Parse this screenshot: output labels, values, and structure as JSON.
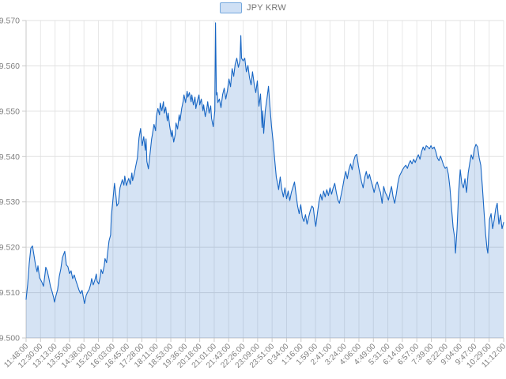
{
  "legend": {
    "items": [
      {
        "label": "JPY KRW"
      }
    ]
  },
  "colors": {
    "line": "#1766c4",
    "fill": "rgba(23,102,196,0.18)",
    "grid_h": "#e0e0e0",
    "grid_v": "#e8e8e8",
    "axis": "#c9c9c9",
    "tick_label": "#808080",
    "legend_fill": "#cfe0f5",
    "legend_border": "#74a7dd",
    "legend_text": "#757575",
    "background": "#ffffff"
  },
  "chart_data": {
    "type": "area",
    "series_name": "JPY KRW",
    "title": "",
    "xlabel": "",
    "ylabel": "",
    "grid": true,
    "legend_position": "top-center",
    "ylim": [
      9.5,
      9.57
    ],
    "y_step": 0.01,
    "y_tick_labels": [
      "9.570",
      "9.560",
      "9.550",
      "9.540",
      "9.530",
      "9.520",
      "9.510",
      "9.500"
    ],
    "x_tick_labels": [
      "11:48:00",
      "12:30:00",
      "13:13:00",
      "13:55:00",
      "14:38:00",
      "15:20:00",
      "16:03:00",
      "16:45:00",
      "17:28:00",
      "18:11:00",
      "18:53:00",
      "19:36:00",
      "20:18:00",
      "21:01:00",
      "21:43:00",
      "22:26:00",
      "23:09:00",
      "23:51:00",
      "0:34:00",
      "1:16:00",
      "1:59:00",
      "2:41:00",
      "3:24:00",
      "4:06:00",
      "4:49:00",
      "5:31:00",
      "6:14:00",
      "6:57:00",
      "7:39:00",
      "8:22:00",
      "9:04:00",
      "9:47:00",
      "10:29:00",
      "11:12:00"
    ],
    "x_unit": "label_index",
    "points": [
      [
        0.0,
        9.5085
      ],
      [
        0.11,
        9.5118
      ],
      [
        0.22,
        9.5165
      ],
      [
        0.33,
        9.5198
      ],
      [
        0.44,
        9.5203
      ],
      [
        0.55,
        9.5181
      ],
      [
        0.65,
        9.5161
      ],
      [
        0.76,
        9.5146
      ],
      [
        0.82,
        9.5159
      ],
      [
        0.93,
        9.5133
      ],
      [
        1.09,
        9.5123
      ],
      [
        1.2,
        9.5114
      ],
      [
        1.31,
        9.5142
      ],
      [
        1.36,
        9.5156
      ],
      [
        1.47,
        9.5147
      ],
      [
        1.58,
        9.5131
      ],
      [
        1.69,
        9.5113
      ],
      [
        1.8,
        9.5102
      ],
      [
        1.91,
        9.5088
      ],
      [
        1.96,
        9.5079
      ],
      [
        2.07,
        9.5094
      ],
      [
        2.18,
        9.5107
      ],
      [
        2.29,
        9.5135
      ],
      [
        2.4,
        9.5152
      ],
      [
        2.51,
        9.5177
      ],
      [
        2.67,
        9.5191
      ],
      [
        2.78,
        9.5161
      ],
      [
        2.89,
        9.5157
      ],
      [
        3.0,
        9.5142
      ],
      [
        3.11,
        9.5148
      ],
      [
        3.22,
        9.5131
      ],
      [
        3.33,
        9.5139
      ],
      [
        3.44,
        9.5126
      ],
      [
        3.55,
        9.5116
      ],
      [
        3.65,
        9.5106
      ],
      [
        3.76,
        9.5098
      ],
      [
        3.87,
        9.5105
      ],
      [
        3.98,
        9.5086
      ],
      [
        4.04,
        9.5076
      ],
      [
        4.15,
        9.5094
      ],
      [
        4.25,
        9.5101
      ],
      [
        4.36,
        9.5107
      ],
      [
        4.47,
        9.5119
      ],
      [
        4.53,
        9.5131
      ],
      [
        4.64,
        9.5117
      ],
      [
        4.75,
        9.5127
      ],
      [
        4.85,
        9.5141
      ],
      [
        4.91,
        9.5125
      ],
      [
        5.02,
        9.5119
      ],
      [
        5.13,
        9.5137
      ],
      [
        5.18,
        9.5151
      ],
      [
        5.29,
        9.5142
      ],
      [
        5.4,
        9.5159
      ],
      [
        5.45,
        9.5175
      ],
      [
        5.56,
        9.5166
      ],
      [
        5.62,
        9.5184
      ],
      [
        5.73,
        9.5214
      ],
      [
        5.84,
        9.5227
      ],
      [
        5.89,
        9.5268
      ],
      [
        6.0,
        9.5304
      ],
      [
        6.11,
        9.5341
      ],
      [
        6.22,
        9.5311
      ],
      [
        6.27,
        9.5291
      ],
      [
        6.38,
        9.5297
      ],
      [
        6.49,
        9.5331
      ],
      [
        6.65,
        9.5349
      ],
      [
        6.76,
        9.5337
      ],
      [
        6.82,
        9.5357
      ],
      [
        6.93,
        9.5336
      ],
      [
        7.09,
        9.5352
      ],
      [
        7.2,
        9.5339
      ],
      [
        7.31,
        9.5364
      ],
      [
        7.36,
        9.5347
      ],
      [
        7.47,
        9.5361
      ],
      [
        7.58,
        9.5379
      ],
      [
        7.69,
        9.5397
      ],
      [
        7.8,
        9.5441
      ],
      [
        7.91,
        9.5462
      ],
      [
        8.02,
        9.5424
      ],
      [
        8.13,
        9.5444
      ],
      [
        8.24,
        9.5414
      ],
      [
        8.29,
        9.5439
      ],
      [
        8.35,
        9.5389
      ],
      [
        8.45,
        9.5373
      ],
      [
        8.56,
        9.5405
      ],
      [
        8.67,
        9.5438
      ],
      [
        8.73,
        9.5449
      ],
      [
        8.84,
        9.5471
      ],
      [
        8.95,
        9.5457
      ],
      [
        9.0,
        9.5488
      ],
      [
        9.11,
        9.5506
      ],
      [
        9.22,
        9.5492
      ],
      [
        9.27,
        9.5518
      ],
      [
        9.38,
        9.5501
      ],
      [
        9.49,
        9.5521
      ],
      [
        9.55,
        9.5496
      ],
      [
        9.65,
        9.5509
      ],
      [
        9.76,
        9.5479
      ],
      [
        9.82,
        9.5496
      ],
      [
        9.93,
        9.5466
      ],
      [
        10.04,
        9.5444
      ],
      [
        10.09,
        9.5458
      ],
      [
        10.2,
        9.5432
      ],
      [
        10.31,
        9.5449
      ],
      [
        10.36,
        9.5474
      ],
      [
        10.47,
        9.5461
      ],
      [
        10.58,
        9.5492
      ],
      [
        10.64,
        9.5479
      ],
      [
        10.75,
        9.5506
      ],
      [
        10.85,
        9.5521
      ],
      [
        10.91,
        9.5536
      ],
      [
        11.02,
        9.5519
      ],
      [
        11.13,
        9.5544
      ],
      [
        11.18,
        9.5531
      ],
      [
        11.29,
        9.5541
      ],
      [
        11.4,
        9.5521
      ],
      [
        11.45,
        9.5536
      ],
      [
        11.56,
        9.5514
      ],
      [
        11.67,
        9.5531
      ],
      [
        11.73,
        9.5506
      ],
      [
        11.84,
        9.5523
      ],
      [
        11.95,
        9.5536
      ],
      [
        12.0,
        9.5514
      ],
      [
        12.11,
        9.5527
      ],
      [
        12.22,
        9.5501
      ],
      [
        12.27,
        9.5514
      ],
      [
        12.38,
        9.5488
      ],
      [
        12.49,
        9.5506
      ],
      [
        12.55,
        9.5521
      ],
      [
        12.65,
        9.5496
      ],
      [
        12.76,
        9.5512
      ],
      [
        12.82,
        9.5484
      ],
      [
        12.93,
        9.5466
      ],
      [
        13.04,
        9.5501
      ],
      [
        13.09,
        9.5695
      ],
      [
        13.15,
        9.5536
      ],
      [
        13.2,
        9.5541
      ],
      [
        13.25,
        9.5519
      ],
      [
        13.36,
        9.5527
      ],
      [
        13.47,
        9.5508
      ],
      [
        13.58,
        9.5537
      ],
      [
        13.69,
        9.5551
      ],
      [
        13.8,
        9.5527
      ],
      [
        13.91,
        9.5545
      ],
      [
        14.02,
        9.5571
      ],
      [
        14.13,
        9.5554
      ],
      [
        14.24,
        9.5594
      ],
      [
        14.35,
        9.5577
      ],
      [
        14.45,
        9.5604
      ],
      [
        14.56,
        9.5617
      ],
      [
        14.67,
        9.5597
      ],
      [
        14.78,
        9.5611
      ],
      [
        14.84,
        9.5667
      ],
      [
        14.89,
        9.5617
      ],
      [
        15.0,
        9.5611
      ],
      [
        15.11,
        9.5617
      ],
      [
        15.22,
        9.5587
      ],
      [
        15.33,
        9.5601
      ],
      [
        15.44,
        9.5574
      ],
      [
        15.55,
        9.5558
      ],
      [
        15.65,
        9.5587
      ],
      [
        15.76,
        9.556
      ],
      [
        15.87,
        9.5541
      ],
      [
        15.98,
        9.5567
      ],
      [
        16.09,
        9.5511
      ],
      [
        16.2,
        9.5538
      ],
      [
        16.31,
        9.5464
      ],
      [
        16.36,
        9.5501
      ],
      [
        16.42,
        9.5451
      ],
      [
        16.53,
        9.5501
      ],
      [
        16.64,
        9.5527
      ],
      [
        16.75,
        9.5555
      ],
      [
        16.85,
        9.5511
      ],
      [
        16.96,
        9.5467
      ],
      [
        17.07,
        9.5434
      ],
      [
        17.18,
        9.5394
      ],
      [
        17.29,
        9.5354
      ],
      [
        17.4,
        9.5337
      ],
      [
        17.45,
        9.5327
      ],
      [
        17.56,
        9.5355
      ],
      [
        17.67,
        9.5328
      ],
      [
        17.78,
        9.5311
      ],
      [
        17.89,
        9.5331
      ],
      [
        18.0,
        9.5307
      ],
      [
        18.11,
        9.5324
      ],
      [
        18.22,
        9.5303
      ],
      [
        18.33,
        9.5321
      ],
      [
        18.44,
        9.5332
      ],
      [
        18.55,
        9.5344
      ],
      [
        18.65,
        9.5317
      ],
      [
        18.76,
        9.5291
      ],
      [
        18.87,
        9.5274
      ],
      [
        18.98,
        9.5294
      ],
      [
        19.09,
        9.5266
      ],
      [
        19.2,
        9.5257
      ],
      [
        19.31,
        9.5272
      ],
      [
        19.42,
        9.5251
      ],
      [
        19.53,
        9.5267
      ],
      [
        19.64,
        9.5281
      ],
      [
        19.75,
        9.5291
      ],
      [
        19.85,
        9.5287
      ],
      [
        19.96,
        9.5257
      ],
      [
        20.02,
        9.5246
      ],
      [
        20.13,
        9.5274
      ],
      [
        20.24,
        9.5301
      ],
      [
        20.35,
        9.5317
      ],
      [
        20.45,
        9.5304
      ],
      [
        20.56,
        9.5324
      ],
      [
        20.67,
        9.5311
      ],
      [
        20.78,
        9.5327
      ],
      [
        20.89,
        9.5314
      ],
      [
        21.0,
        9.5331
      ],
      [
        21.11,
        9.5317
      ],
      [
        21.22,
        9.5331
      ],
      [
        21.33,
        9.5341
      ],
      [
        21.44,
        9.5321
      ],
      [
        21.55,
        9.5304
      ],
      [
        21.65,
        9.5297
      ],
      [
        21.76,
        9.5314
      ],
      [
        21.87,
        9.5331
      ],
      [
        21.98,
        9.5351
      ],
      [
        22.09,
        9.5367
      ],
      [
        22.2,
        9.5351
      ],
      [
        22.31,
        9.5371
      ],
      [
        22.42,
        9.5384
      ],
      [
        22.53,
        9.5371
      ],
      [
        22.64,
        9.5391
      ],
      [
        22.75,
        9.5402
      ],
      [
        22.85,
        9.5405
      ],
      [
        22.96,
        9.5381
      ],
      [
        23.07,
        9.5361
      ],
      [
        23.18,
        9.5344
      ],
      [
        23.29,
        9.5331
      ],
      [
        23.4,
        9.5354
      ],
      [
        23.51,
        9.5367
      ],
      [
        23.62,
        9.5351
      ],
      [
        23.73,
        9.5361
      ],
      [
        23.84,
        9.5347
      ],
      [
        23.95,
        9.5334
      ],
      [
        24.05,
        9.5321
      ],
      [
        24.16,
        9.5337
      ],
      [
        24.27,
        9.5344
      ],
      [
        24.38,
        9.5331
      ],
      [
        24.49,
        9.5321
      ],
      [
        24.6,
        9.5297
      ],
      [
        24.71,
        9.5334
      ],
      [
        24.82,
        9.5321
      ],
      [
        24.93,
        9.5314
      ],
      [
        25.04,
        9.5304
      ],
      [
        25.15,
        9.5321
      ],
      [
        25.25,
        9.5334
      ],
      [
        25.36,
        9.5311
      ],
      [
        25.47,
        9.5297
      ],
      [
        25.58,
        9.5317
      ],
      [
        25.69,
        9.5341
      ],
      [
        25.8,
        9.5357
      ],
      [
        25.91,
        9.5364
      ],
      [
        26.02,
        9.5371
      ],
      [
        26.13,
        9.5377
      ],
      [
        26.24,
        9.5381
      ],
      [
        26.35,
        9.5374
      ],
      [
        26.45,
        9.5384
      ],
      [
        26.56,
        9.5391
      ],
      [
        26.67,
        9.5384
      ],
      [
        26.78,
        9.5394
      ],
      [
        26.89,
        9.5387
      ],
      [
        27.0,
        9.5397
      ],
      [
        27.11,
        9.5404
      ],
      [
        27.22,
        9.5394
      ],
      [
        27.33,
        9.5411
      ],
      [
        27.44,
        9.5421
      ],
      [
        27.55,
        9.5414
      ],
      [
        27.65,
        9.5424
      ],
      [
        27.76,
        9.5421
      ],
      [
        27.87,
        9.5417
      ],
      [
        27.98,
        9.5424
      ],
      [
        28.09,
        9.5417
      ],
      [
        28.2,
        9.5421
      ],
      [
        28.31,
        9.5411
      ],
      [
        28.42,
        9.5397
      ],
      [
        28.53,
        9.5391
      ],
      [
        28.64,
        9.5401
      ],
      [
        28.75,
        9.5391
      ],
      [
        28.85,
        9.5381
      ],
      [
        28.96,
        9.5374
      ],
      [
        29.07,
        9.5377
      ],
      [
        29.18,
        9.5361
      ],
      [
        29.29,
        9.5331
      ],
      [
        29.4,
        9.5287
      ],
      [
        29.51,
        9.5244
      ],
      [
        29.62,
        9.5221
      ],
      [
        29.67,
        9.5187
      ],
      [
        29.78,
        9.5241
      ],
      [
        29.89,
        9.5321
      ],
      [
        30.0,
        9.5371
      ],
      [
        30.11,
        9.5341
      ],
      [
        30.22,
        9.5331
      ],
      [
        30.33,
        9.5351
      ],
      [
        30.44,
        9.5321
      ],
      [
        30.55,
        9.5364
      ],
      [
        30.65,
        9.5384
      ],
      [
        30.76,
        9.5404
      ],
      [
        30.87,
        9.5394
      ],
      [
        30.98,
        9.5417
      ],
      [
        31.09,
        9.5427
      ],
      [
        31.2,
        9.5421
      ],
      [
        31.31,
        9.5397
      ],
      [
        31.42,
        9.5381
      ],
      [
        31.53,
        9.5334
      ],
      [
        31.64,
        9.5281
      ],
      [
        31.75,
        9.5231
      ],
      [
        31.85,
        9.5197
      ],
      [
        31.91,
        9.5187
      ],
      [
        32.02,
        9.5261
      ],
      [
        32.13,
        9.5274
      ],
      [
        32.24,
        9.5241
      ],
      [
        32.35,
        9.5261
      ],
      [
        32.45,
        9.5284
      ],
      [
        32.56,
        9.5297
      ],
      [
        32.67,
        9.5251
      ],
      [
        32.78,
        9.5271
      ],
      [
        32.89,
        9.5241
      ],
      [
        33.0,
        9.5255
      ]
    ]
  }
}
